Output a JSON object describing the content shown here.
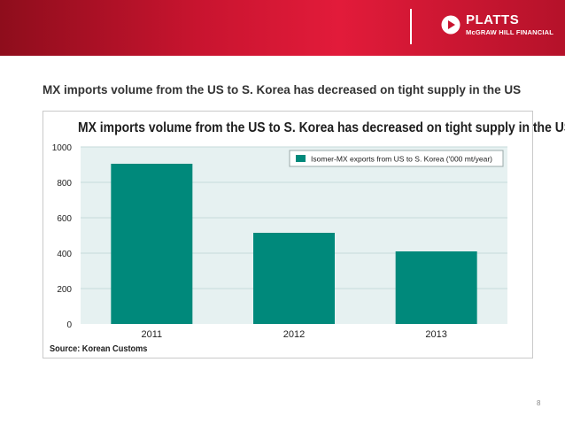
{
  "header": {
    "brand": "PLATTS",
    "company": "McGRAW HILL FINANCIAL"
  },
  "slide": {
    "title": "MX imports volume from the US to S. Korea has decreased on tight supply in the US",
    "page_number": "8"
  },
  "chart_data": {
    "type": "bar",
    "title": "MX imports volume from the US to S. Korea has decreased on tight supply in the US",
    "categories": [
      "2011",
      "2012",
      "2013"
    ],
    "series": [
      {
        "name": "Isomer-MX exports from US to S. Korea ('000 mt/year)",
        "values": [
          905,
          515,
          410
        ]
      }
    ],
    "ylim": [
      0,
      1000
    ],
    "yticks": [
      0,
      200,
      400,
      600,
      800,
      1000
    ],
    "xlabel": "",
    "ylabel": "",
    "grid": true,
    "legend": "top-right",
    "source": "Source: Korean Customs",
    "colors": {
      "bar": "#00897b",
      "plot_bg": "#e6f1f1",
      "grid": "#c5dada"
    }
  },
  "colors": {
    "accent": "#e21b3a",
    "banner_dark": "#8e0d1c"
  }
}
